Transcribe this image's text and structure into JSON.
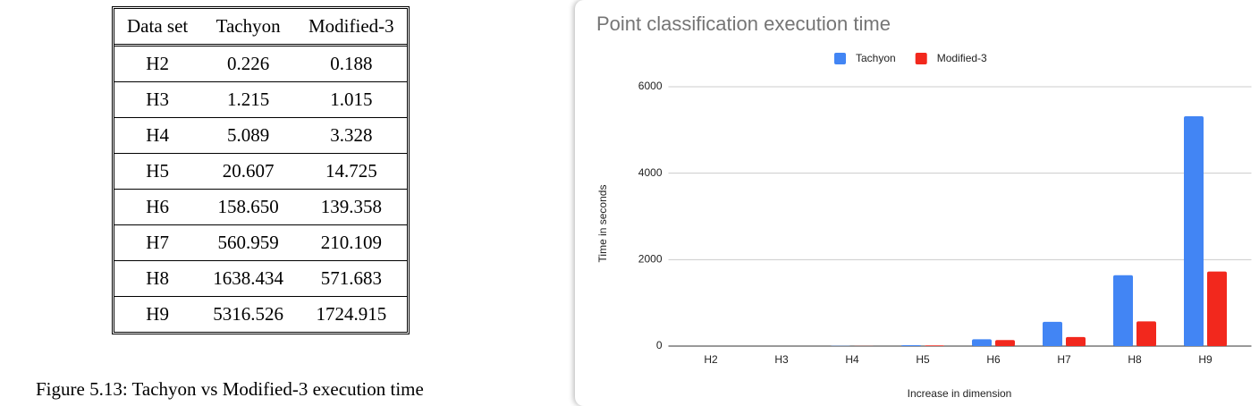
{
  "table": {
    "header": [
      "Data set",
      "Tachyon",
      "Modified-3"
    ],
    "rows": [
      [
        "H2",
        "0.226",
        "0.188"
      ],
      [
        "H3",
        "1.215",
        "1.015"
      ],
      [
        "H4",
        "5.089",
        "3.328"
      ],
      [
        "H5",
        "20.607",
        "14.725"
      ],
      [
        "H6",
        "158.650",
        "139.358"
      ],
      [
        "H7",
        "560.959",
        "210.109"
      ],
      [
        "H8",
        "1638.434",
        "571.683"
      ],
      [
        "H9",
        "5316.526",
        "1724.915"
      ]
    ]
  },
  "caption": "Figure 5.13: Tachyon vs Modified-3 execution time",
  "chart_data": {
    "type": "bar",
    "title": "Point classification execution time",
    "x_label": "Increase in dimension",
    "y_label": "Time in seconds",
    "categories": [
      "H2",
      "H3",
      "H4",
      "H5",
      "H6",
      "H7",
      "H8",
      "H9"
    ],
    "series": [
      {
        "name": "Tachyon",
        "color": "#4285f4",
        "values": [
          0.226,
          1.215,
          5.089,
          20.607,
          158.65,
          560.959,
          1638.434,
          5316.526
        ]
      },
      {
        "name": "Modified-3",
        "color": "#f2281d",
        "values": [
          0.188,
          1.015,
          3.328,
          14.725,
          139.358,
          210.109,
          571.683,
          1724.915
        ]
      }
    ],
    "ylim": [
      0,
      6000
    ],
    "yticks": [
      0,
      2000,
      4000,
      6000
    ],
    "grid": true,
    "legend": "top"
  }
}
